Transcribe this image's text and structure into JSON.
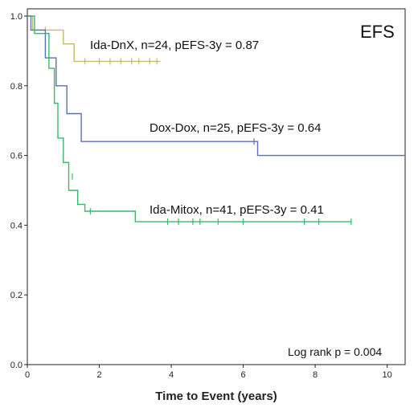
{
  "chart_data": {
    "type": "line",
    "subtype": "kaplan-meier",
    "title": "EFS",
    "xlabel": "Time to Event (years)",
    "ylabel": "",
    "xlim": [
      0,
      10.5
    ],
    "ylim": [
      0,
      1.0
    ],
    "x_ticks": [
      0,
      2,
      4,
      6,
      8,
      10
    ],
    "y_ticks": [
      0.0,
      0.2,
      0.4,
      0.6,
      0.8,
      1.0
    ],
    "x_tick_labels": [
      "0",
      "2",
      "4",
      "6",
      "8",
      "10"
    ],
    "y_tick_labels": [
      "0.0",
      "0.2",
      "0.4",
      "0.6",
      "0.8",
      "1.0"
    ],
    "grid": false,
    "footnote": "Log rank p = 0.004",
    "series": [
      {
        "name": "Ida-DnX",
        "label": "Ida-DnX, n=24, pEFS-3y = 0.87",
        "color": "#c8b870",
        "x": [
          0,
          0.15,
          0.15,
          1.0,
          1.0,
          1.3,
          1.3,
          3.7
        ],
        "y": [
          1.0,
          1.0,
          0.96,
          0.96,
          0.92,
          0.92,
          0.87,
          0.87
        ],
        "censor_x": [
          0.5,
          1.6,
          2.0,
          2.3,
          2.6,
          2.9,
          3.1,
          3.4,
          3.6
        ],
        "censor_y": [
          0.96,
          0.87,
          0.87,
          0.87,
          0.87,
          0.87,
          0.87,
          0.87,
          0.87
        ]
      },
      {
        "name": "Dox-Dox",
        "label": "Dox-Dox, n=25, pEFS-3y = 0.64",
        "color": "#5b6fb8",
        "x": [
          0,
          0.1,
          0.1,
          0.5,
          0.5,
          0.8,
          0.8,
          1.1,
          1.1,
          1.5,
          1.5,
          6.4,
          6.4,
          10.5
        ],
        "y": [
          1.0,
          1.0,
          0.96,
          0.96,
          0.88,
          0.88,
          0.8,
          0.8,
          0.72,
          0.72,
          0.64,
          0.64,
          0.6,
          0.6
        ],
        "censor_x": [
          6.3
        ],
        "censor_y": [
          0.64
        ]
      },
      {
        "name": "Ida-Mitox",
        "label": "Ida-Mitox, n=41, pEFS-3y = 0.41",
        "color": "#3cb86a",
        "x": [
          0,
          0.2,
          0.2,
          0.6,
          0.6,
          0.75,
          0.75,
          0.85,
          0.85,
          1.0,
          1.0,
          1.15,
          1.15,
          1.4,
          1.4,
          1.6,
          1.6,
          3.0,
          3.0,
          9.0
        ],
        "y": [
          1.0,
          1.0,
          0.95,
          0.95,
          0.85,
          0.85,
          0.75,
          0.75,
          0.65,
          0.65,
          0.58,
          0.58,
          0.5,
          0.5,
          0.46,
          0.46,
          0.44,
          0.44,
          0.41,
          0.41
        ],
        "censor_x": [
          1.25,
          1.75,
          3.9,
          4.2,
          4.6,
          4.8,
          5.3,
          6.0,
          7.7,
          8.1,
          9.0
        ],
        "censor_y": [
          0.54,
          0.44,
          0.41,
          0.41,
          0.41,
          0.41,
          0.41,
          0.41,
          0.41,
          0.41,
          0.41
        ]
      }
    ]
  }
}
